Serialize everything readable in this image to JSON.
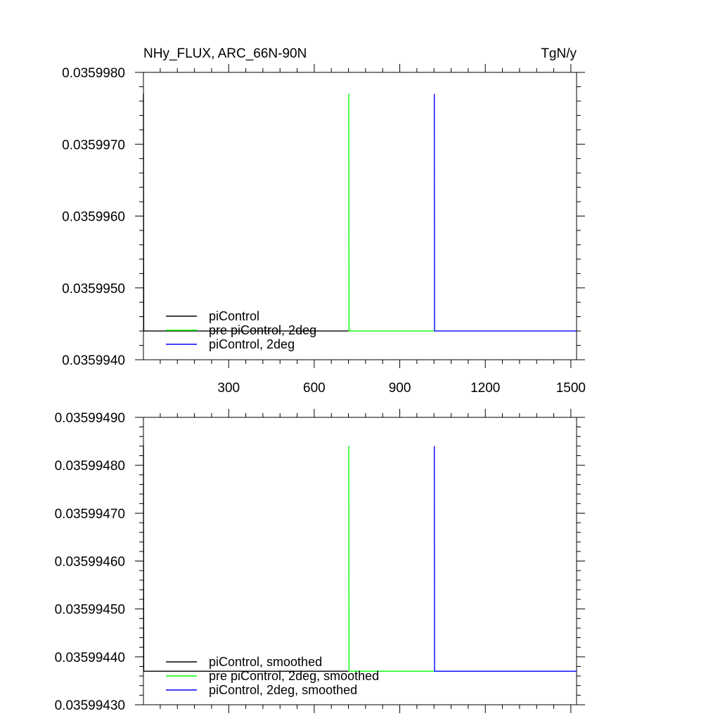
{
  "header": {
    "title": "NHy_FLUX, ARC_66N-90N",
    "units": "TgN/y"
  },
  "colors": {
    "axis": "#000000",
    "piControl": "#000000",
    "pre_piControl_2deg": "#00ff00",
    "piControl_2deg": "#0000ff"
  },
  "chart_data": [
    {
      "type": "line",
      "title": "NHy_FLUX, ARC_66N-90N",
      "units": "TgN/y",
      "xlim": [
        1,
        1520
      ],
      "ylim": [
        0.035994,
        0.035998
      ],
      "xticks": [
        300,
        600,
        900,
        1200,
        1500
      ],
      "xtick_labels": [
        "300",
        "600",
        "900",
        "1200",
        "1500"
      ],
      "yticks": [
        0.035994,
        0.035995,
        0.035996,
        0.035997,
        0.035998
      ],
      "ytick_labels": [
        "0.0359940",
        "0.0359950",
        "0.0359960",
        "0.0359970",
        "0.0359980"
      ],
      "grid": false,
      "legend_position": "bottom-left",
      "series": [
        {
          "name": "piControl",
          "color": "#000000",
          "x": [
            1,
            1,
            2,
            720
          ],
          "y": [
            0.0359977,
            0.0359977,
            0.0359944,
            0.0359944
          ]
        },
        {
          "name": "pre piControl, 2deg",
          "color": "#00ff00",
          "x": [
            721,
            721,
            722,
            1020
          ],
          "y": [
            0.0359977,
            0.0359977,
            0.0359944,
            0.0359944
          ]
        },
        {
          "name": "piControl, 2deg",
          "color": "#0000ff",
          "x": [
            1021,
            1021,
            1022,
            1520
          ],
          "y": [
            0.0359977,
            0.0359977,
            0.0359944,
            0.0359944
          ]
        }
      ]
    },
    {
      "type": "line",
      "xlim": [
        1,
        1520
      ],
      "ylim": [
        0.0359943,
        0.0359949
      ],
      "xticks": [
        300,
        600,
        900,
        1200,
        1500
      ],
      "yticks": [
        0.0359943,
        0.0359944,
        0.0359945,
        0.0359946,
        0.0359947,
        0.0359948,
        0.0359949
      ],
      "ytick_labels": [
        "0.03599430",
        "0.03599440",
        "0.03599450",
        "0.03599460",
        "0.03599470",
        "0.03599480",
        "0.03599490"
      ],
      "grid": false,
      "legend_position": "bottom-left",
      "series": [
        {
          "name": "piControl, smoothed",
          "color": "#000000",
          "x": [
            1,
            1,
            2,
            720
          ],
          "y": [
            0.03599484,
            0.03599484,
            0.03599437,
            0.03599437
          ]
        },
        {
          "name": "pre piControl, 2deg, smoothed",
          "color": "#00ff00",
          "x": [
            721,
            721,
            722,
            1020
          ],
          "y": [
            0.03599484,
            0.03599484,
            0.03599437,
            0.03599437
          ]
        },
        {
          "name": "piControl, 2deg, smoothed",
          "color": "#0000ff",
          "x": [
            1021,
            1021,
            1022,
            1520
          ],
          "y": [
            0.03599484,
            0.03599484,
            0.03599437,
            0.03599437
          ]
        }
      ]
    }
  ]
}
